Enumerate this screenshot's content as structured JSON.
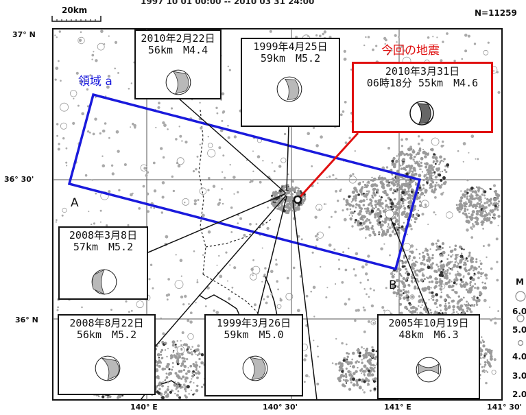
{
  "header": {
    "period": "1997 10 01 00:00 -- 2010 03 31 24:00",
    "count": "N=11259",
    "scale_label": "20km"
  },
  "axes": {
    "lat_labels": [
      "37° N",
      "36° 30'",
      "36° N"
    ],
    "lon_labels": [
      "140° E",
      "140° 30'",
      "141° E",
      "141° 30'"
    ]
  },
  "region": {
    "label": "領域 a",
    "end_a": "A",
    "end_b": "B",
    "color": "#1a1adc"
  },
  "current_quake": {
    "title": "今回の地震",
    "date": "2010年3月31日",
    "detail": "06時18分 55km　M4.6",
    "color": "#e01010"
  },
  "past_quakes": [
    {
      "id": "q1",
      "date": "2010年2月22日",
      "detail": "56km　M4.4"
    },
    {
      "id": "q2",
      "date": "1999年4月25日",
      "detail": "59km　M5.2"
    },
    {
      "id": "q3",
      "date": "2008年3月8日",
      "detail": "57km　M5.2"
    },
    {
      "id": "q4",
      "date": "2008年8月22日",
      "detail": "56km　M5.2"
    },
    {
      "id": "q5",
      "date": "1999年3月26日",
      "detail": "59km　M5.0"
    },
    {
      "id": "q6",
      "date": "2005年10月19日",
      "detail": "48km　M6.3"
    }
  ],
  "legend": {
    "title": "M",
    "magnitudes": [
      "6.0",
      "5.0",
      "4.0",
      "3.0",
      "2.0"
    ]
  }
}
